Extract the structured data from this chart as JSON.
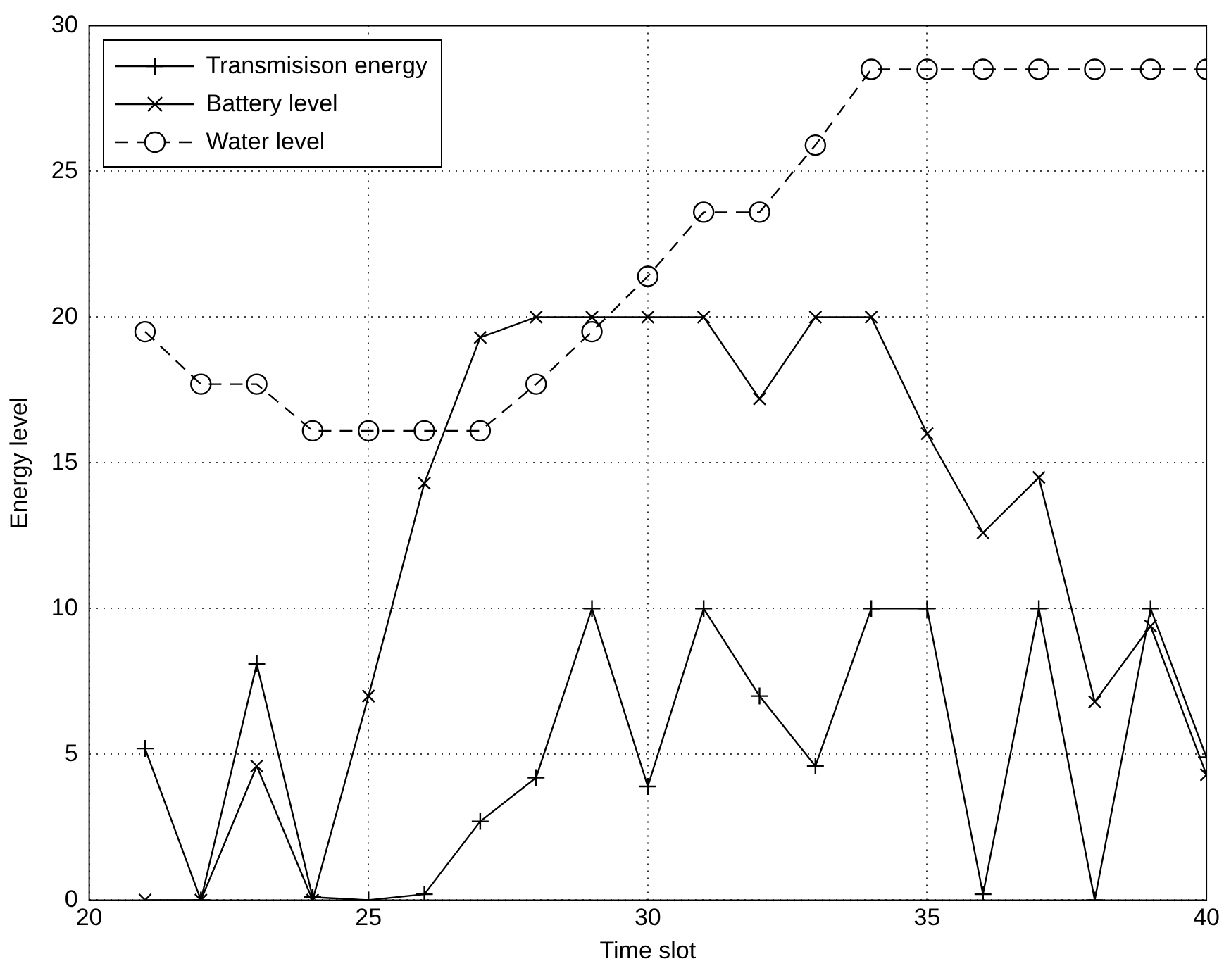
{
  "chart_data": {
    "type": "line",
    "xlabel": "Time slot",
    "ylabel": "Energy level",
    "x": [
      21,
      22,
      23,
      24,
      25,
      26,
      27,
      28,
      29,
      30,
      31,
      32,
      33,
      34,
      35,
      36,
      37,
      38,
      39,
      40
    ],
    "xlim": [
      20,
      40
    ],
    "xticks": [
      20,
      25,
      30,
      35,
      40
    ],
    "ylim": [
      0,
      30
    ],
    "yticks": [
      0,
      5,
      10,
      15,
      20,
      25,
      30
    ],
    "grid": true,
    "legend": "top left",
    "series": [
      {
        "name": "Transmisison energy",
        "color": "#000000",
        "marker": "cross",
        "line_style": "solid",
        "values": [
          5.2,
          0,
          8.1,
          0.1,
          0,
          0.2,
          2.7,
          4.2,
          10,
          3.9,
          10,
          7,
          4.6,
          10,
          10,
          0.2,
          10,
          0,
          10,
          4.9
        ]
      },
      {
        "name": "Battery level",
        "color": "#000000",
        "marker": "x",
        "line_style": "solid",
        "values": [
          0,
          0,
          4.6,
          0,
          7,
          14.3,
          19.3,
          20,
          20,
          20,
          20,
          17.2,
          20,
          20,
          16,
          12.6,
          14.5,
          6.8,
          9.4,
          4.3
        ]
      },
      {
        "name": "Water level",
        "color": "#000000",
        "marker": "circle",
        "line_style": "dashed",
        "values": [
          19.5,
          17.7,
          17.7,
          16.1,
          16.1,
          16.1,
          16.1,
          17.7,
          19.5,
          21.4,
          23.6,
          23.6,
          25.9,
          28.5,
          28.5,
          28.5,
          28.5,
          28.5,
          28.5,
          28.5
        ]
      }
    ]
  }
}
